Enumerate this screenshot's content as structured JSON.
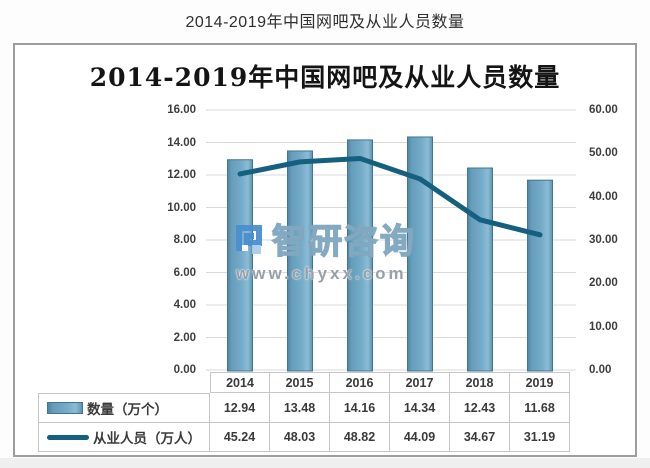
{
  "page": {
    "outer_title": "2014-2019年中国网吧及从业人员数量",
    "inner_title": "2014-2019年中国网吧及从业人员数量"
  },
  "watermark": {
    "logo_icon": "zhiyan-logo",
    "brand": "智研咨询",
    "url": "www.chyxx.com"
  },
  "colors": {
    "bar_fill": "#74abc8",
    "bar_edge": "#44758f",
    "line": "#14607e",
    "gridline": "#d9d9d9",
    "frame_border": "#9d9d9d",
    "table_border": "#c6c6c6",
    "text": "#3a3a3a",
    "logo_blue": "#4a8fd0"
  },
  "chart_data": {
    "type": "bar",
    "subtype": "bar+line combo, line on secondary axis",
    "title": "2014-2019年中国网吧及从业人员数量",
    "categories": [
      "2014",
      "2015",
      "2016",
      "2017",
      "2018",
      "2019"
    ],
    "series": [
      {
        "name": "数量（万个）",
        "type": "bar",
        "axis": "left",
        "values": [
          12.94,
          13.48,
          14.16,
          14.34,
          12.43,
          11.68
        ]
      },
      {
        "name": "从业人员（万人）",
        "type": "line",
        "axis": "right",
        "values": [
          45.24,
          48.03,
          48.82,
          44.09,
          34.67,
          31.19
        ]
      }
    ],
    "left_axis": {
      "min": 0,
      "max": 16,
      "step": 2,
      "ticks": [
        "16.00",
        "14.00",
        "12.00",
        "10.00",
        "8.00",
        "6.00",
        "4.00",
        "2.00",
        "0.00"
      ]
    },
    "right_axis": {
      "min": 0,
      "max": 60,
      "step": 10,
      "ticks": [
        "60.00",
        "50.00",
        "40.00",
        "30.00",
        "20.00",
        "10.00",
        "0.00"
      ]
    },
    "grid": true,
    "legend_position": "bottom data table"
  }
}
